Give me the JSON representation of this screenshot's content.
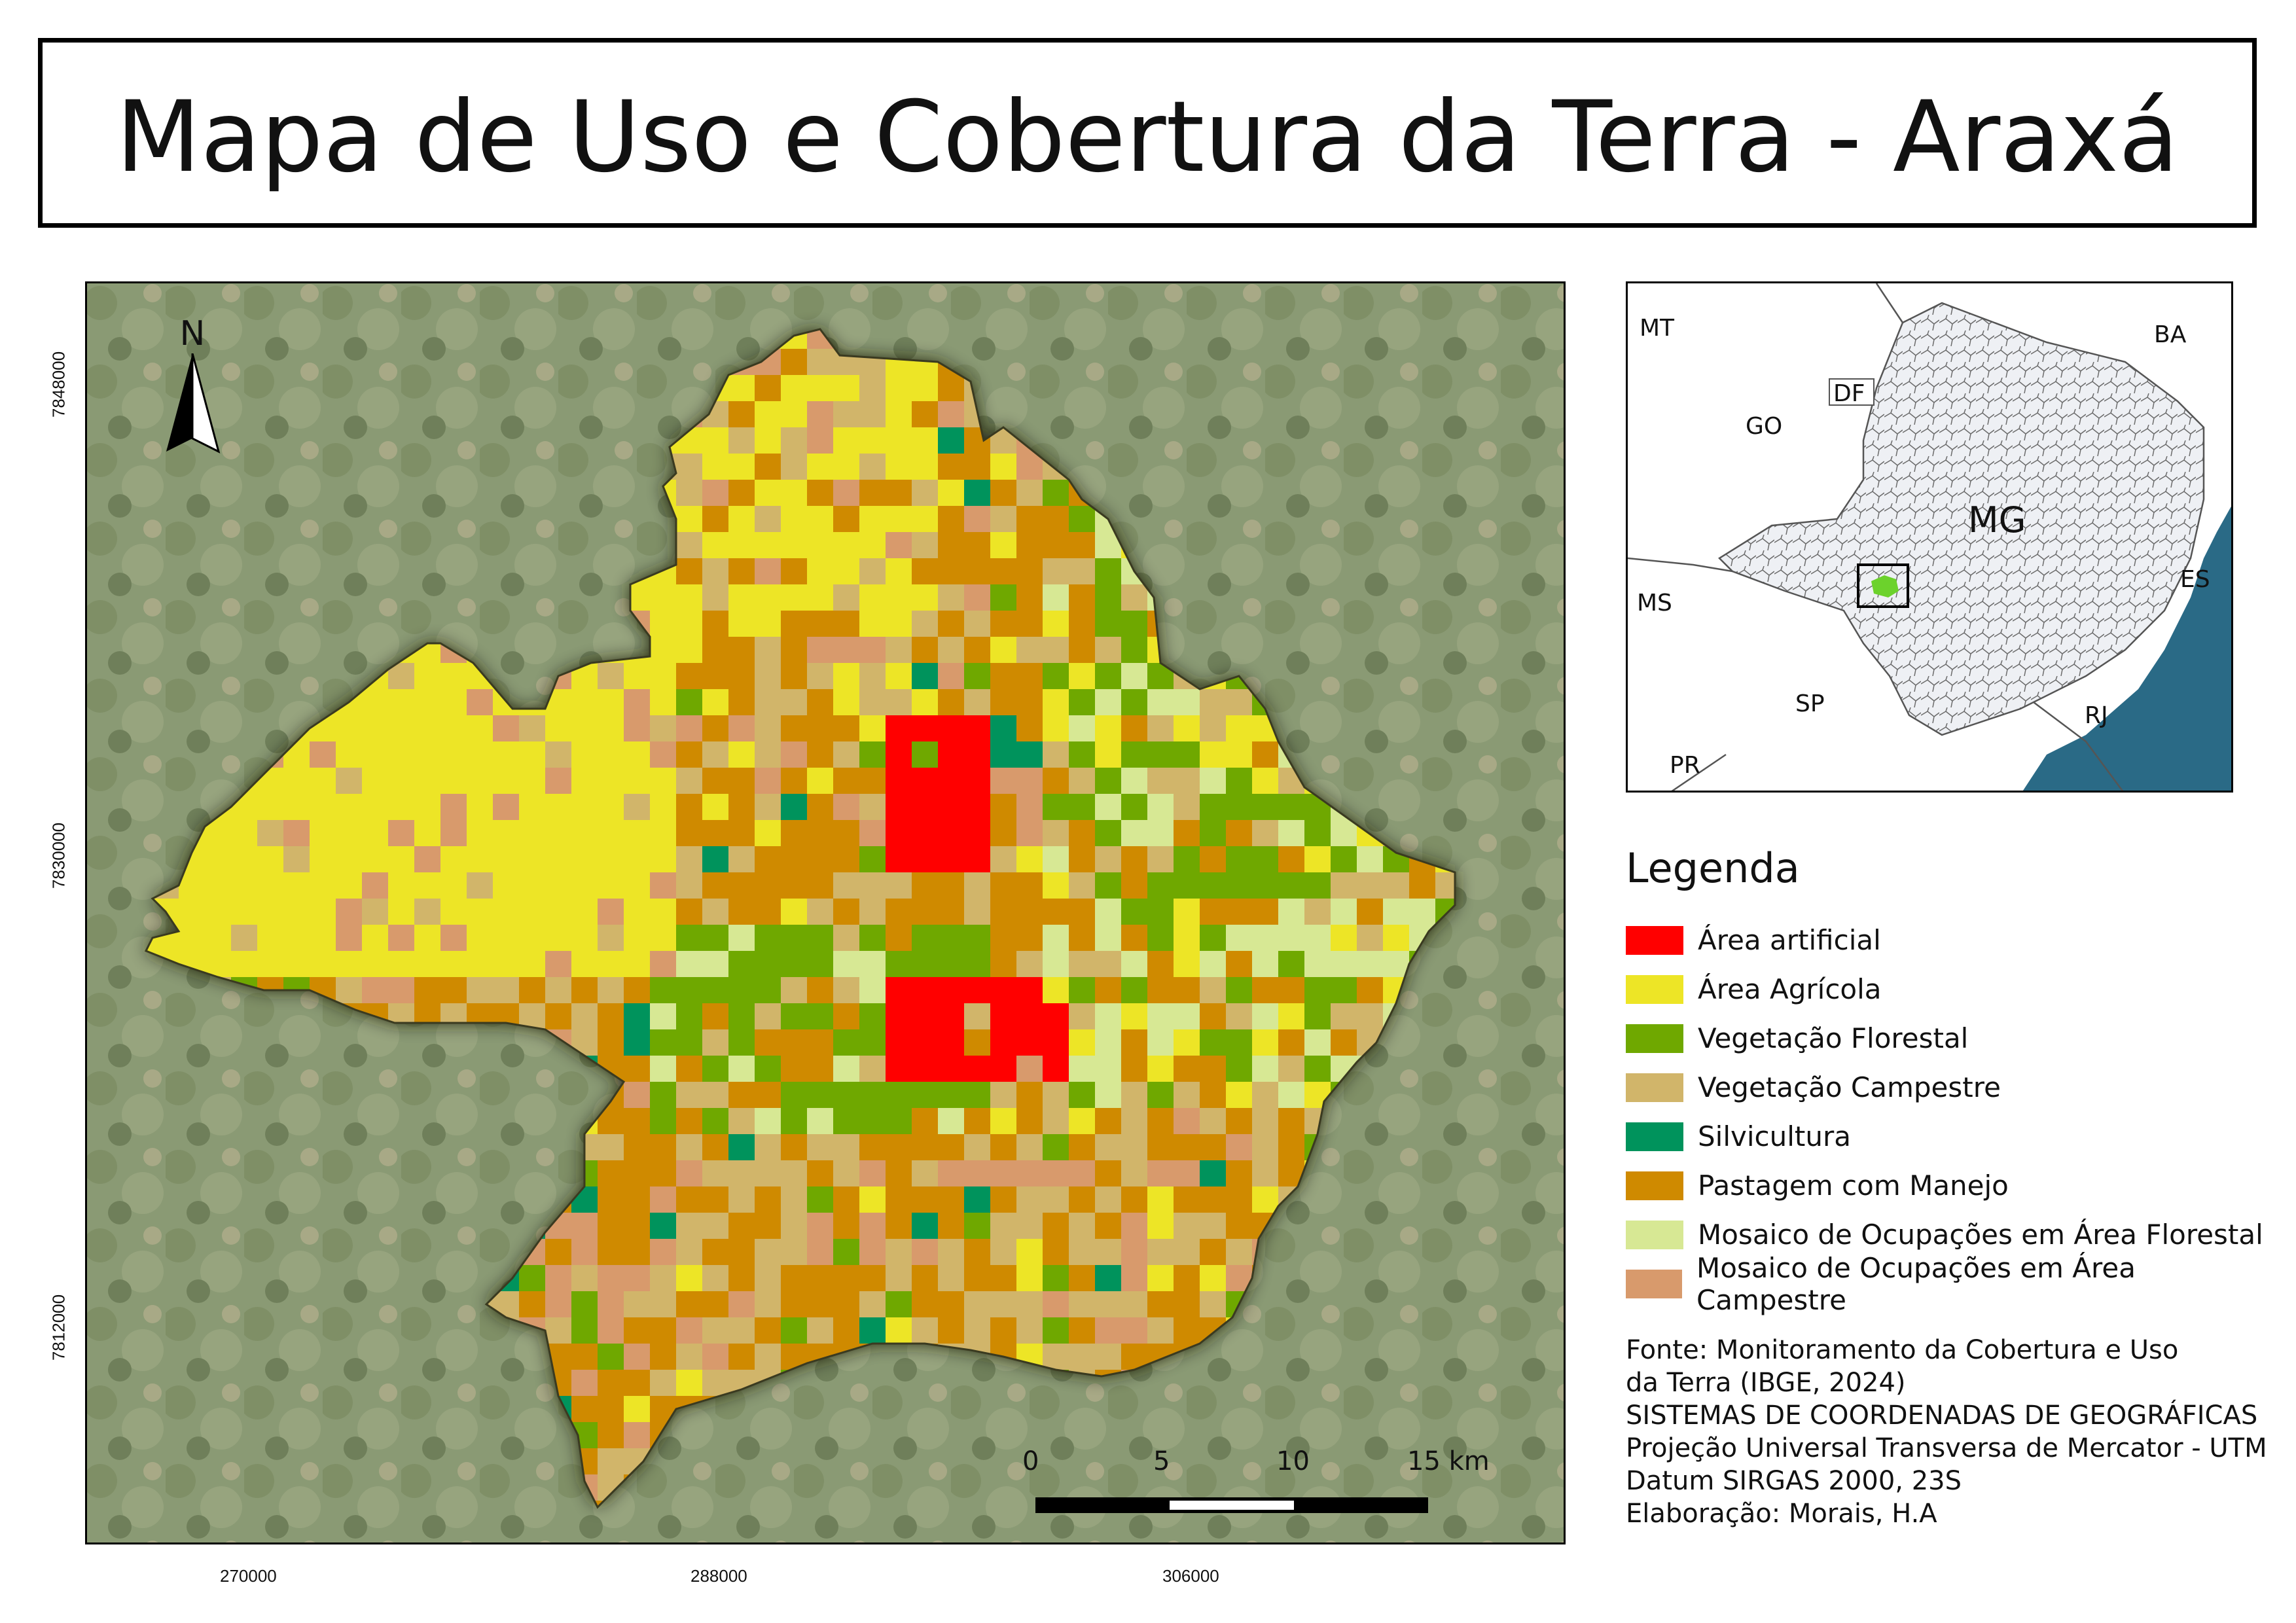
{
  "title": "Mapa de Uso e Cobertura da Terra - Araxá",
  "north_arrow": {
    "label": "N",
    "icon": "north-arrow-icon"
  },
  "coordinates": {
    "y_labels": [
      "7848000",
      "7830000",
      "7812000"
    ],
    "x_labels": [
      "270000",
      "288000",
      "306000"
    ]
  },
  "scale_bar": {
    "labels": [
      "0",
      "5",
      "10",
      "15 km"
    ],
    "unit": "km"
  },
  "locator": {
    "state_labels": [
      "MT",
      "BA",
      "DF",
      "GO",
      "MG",
      "MS",
      "ES",
      "SP",
      "RJ",
      "PR"
    ],
    "ocean_color": "#2a6a86",
    "highlight_color": "#6cd22c"
  },
  "legend": {
    "title": "Legenda",
    "items": [
      {
        "label": "Área artificial",
        "color": "#ff0000"
      },
      {
        "label": "Área Agrícola",
        "color": "#ede526"
      },
      {
        "label": "Vegetação Florestal",
        "color": "#6fa800"
      },
      {
        "label": "Vegetação Campestre",
        "color": "#d1b56a"
      },
      {
        "label": "Silvicultura",
        "color": "#00935c"
      },
      {
        "label": "Pastagem com Manejo",
        "color": "#cf8a00"
      },
      {
        "label": "Mosaico de Ocupações em Área Florestal",
        "color": "#d7e894"
      },
      {
        "label": "Mosaico de Ocupações em Área Campestre",
        "color": "#d89a6c"
      }
    ]
  },
  "source_lines": [
    "Fonte: Monitoramento da Cobertura e Uso",
    "da Terra (IBGE, 2024)",
    "SISTEMAS DE COORDENADAS DE GEOGRÁFICAS",
    "Projeção Universal Transversa de Mercator - UTM",
    "Datum SIRGAS 2000, 23S",
    "Elaboração: Morais, H.A"
  ]
}
